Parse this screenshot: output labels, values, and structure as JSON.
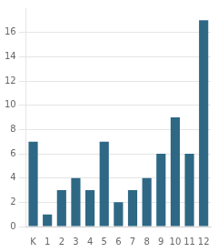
{
  "chart_data": {
    "type": "bar",
    "categories": [
      "K",
      "1",
      "2",
      "3",
      "4",
      "5",
      "6",
      "7",
      "8",
      "9",
      "10",
      "11",
      "12"
    ],
    "values": [
      7,
      1,
      3,
      4,
      3,
      7,
      2,
      3,
      4,
      6,
      9,
      6,
      17
    ],
    "color": "#2e6885",
    "ylim": [
      0,
      18
    ],
    "yticks": [
      0,
      2,
      4,
      6,
      8,
      10,
      12,
      14,
      16
    ],
    "grid": true
  }
}
